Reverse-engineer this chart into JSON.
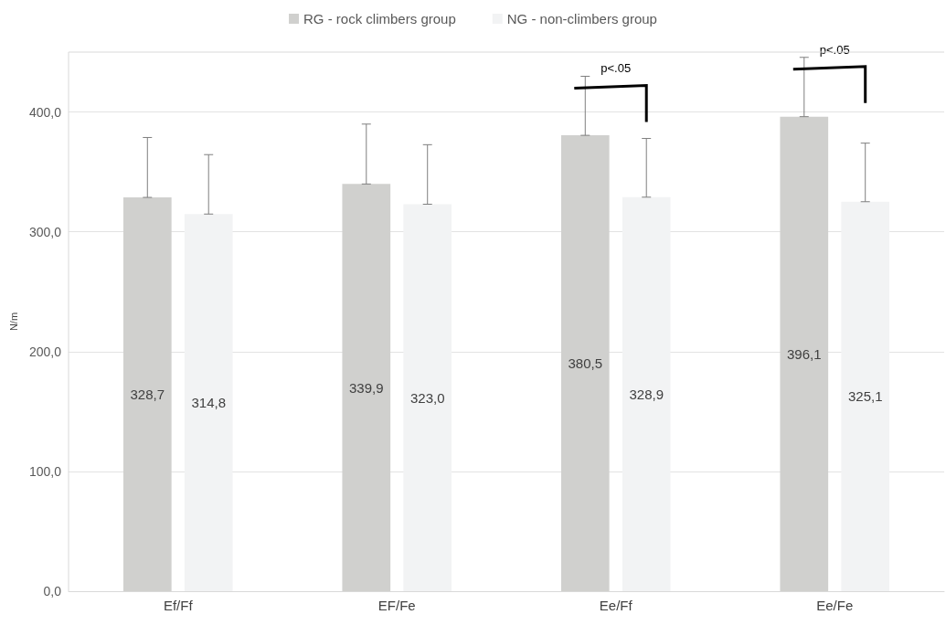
{
  "chart_data": {
    "type": "bar",
    "ylabel": "N/m",
    "categories": [
      "Ef/Ff",
      "EF/Fe",
      "Ee/Ff",
      "Ee/Fe"
    ],
    "series": [
      {
        "name": "RG - rock climbers group",
        "color": "#d0d0ce",
        "values": [
          328.7,
          339.9,
          380.5,
          396.1
        ],
        "value_labels": [
          "328,7",
          "339,9",
          "380,5",
          "396,1"
        ],
        "errors": [
          [
            328.7,
            378.7
          ],
          [
            339.9,
            389.9
          ],
          [
            380.5,
            429.8
          ],
          [
            396.1,
            445.6
          ]
        ]
      },
      {
        "name": "NG - non-climbers group",
        "color": "#f2f3f4",
        "values": [
          314.8,
          323.0,
          328.9,
          325.1
        ],
        "value_labels": [
          "314,8",
          "323,0",
          "328,9",
          "325,1"
        ],
        "errors": [
          [
            314.8,
            364.4
          ],
          [
            323.0,
            372.7
          ],
          [
            328.9,
            377.9
          ],
          [
            325.1,
            374.0
          ]
        ]
      }
    ],
    "ylim": [
      0,
      450
    ],
    "yticks": [
      {
        "value": 0,
        "label": "0,0"
      },
      {
        "value": 100,
        "label": "100,0"
      },
      {
        "value": 200,
        "label": "200,0"
      },
      {
        "value": 300,
        "label": "300,0"
      },
      {
        "value": 400,
        "label": "400,0"
      }
    ],
    "grid": "y",
    "legend": "top",
    "annotations": [
      "p<.05",
      "p<.05"
    ]
  }
}
